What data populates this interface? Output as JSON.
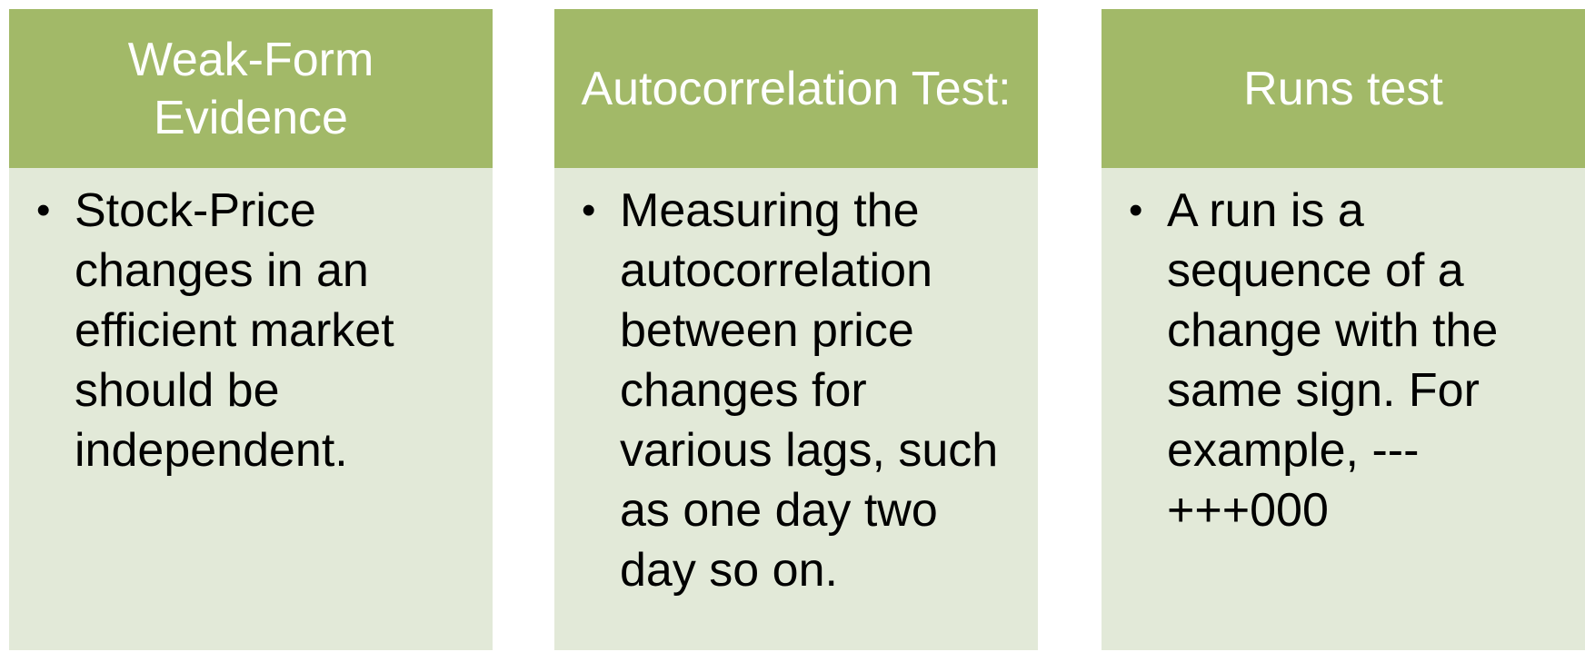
{
  "panels": [
    {
      "title": "Weak-Form Evidence",
      "bullet": "Stock-Price changes in an efficient market should be independent."
    },
    {
      "title": "Autocorrelation Test:",
      "bullet": "Measuring the autocorrelation between price changes for various lags, such as one day two day so on."
    },
    {
      "title": "Runs test",
      "bullet": "A run is a sequence of a change with the same sign. For example, ---+++000"
    }
  ],
  "colors": {
    "header_bg": "#a2b968",
    "body_bg": "#e2e9d8",
    "header_text": "#ffffff",
    "body_text": "#000000"
  }
}
